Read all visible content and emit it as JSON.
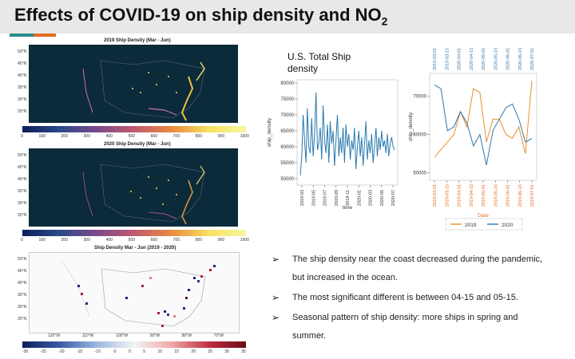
{
  "slide": {
    "title": "Effects of COVID-19 on ship density and NO",
    "title_sub": "2"
  },
  "maps": {
    "map1_title": "2019 Ship Density (Mar - Jun)",
    "map2_title": "2020 Ship Density (Mar - Jun)",
    "map3_title": "Ship Density Mar - Jun (2019 - 2020)",
    "lat_labels": [
      "50°N",
      "45°N",
      "40°N",
      "35°N",
      "30°N",
      "25°N"
    ],
    "colorbar_ticks": [
      "0",
      "100",
      "200",
      "300",
      "400",
      "500",
      "600",
      "700",
      "800",
      "900",
      "1000"
    ],
    "diff_lat_labels": [
      "50°N",
      "45°N",
      "40°N",
      "35°N",
      "30°N",
      "25°N"
    ],
    "diff_lon_labels": [
      "120°W",
      "110°W",
      "100°W",
      "90°W",
      "80°W",
      "70°W"
    ],
    "diff_colorbar_ticks": [
      "-30",
      "-25",
      "-20",
      "-15",
      "-10",
      "-5",
      "0",
      "5",
      "10",
      "15",
      "20",
      "25",
      "30",
      "35"
    ]
  },
  "chart_data": [
    {
      "type": "line",
      "title": "U.S. Total Ship density",
      "xlabel": "time",
      "ylabel": "ship_density",
      "x_ticks": [
        "2019-03",
        "2019-05",
        "2019-07",
        "2019-09",
        "2019-11",
        "2020-01",
        "2020-03",
        "2020-05",
        "2020-07"
      ],
      "y_ticks": [
        "50000",
        "55000",
        "60000",
        "65000",
        "70000",
        "75000",
        "80000"
      ],
      "ylim": [
        48000,
        81000
      ],
      "series": [
        {
          "color": "#2a7ab0",
          "values": [
            51000,
            57000,
            70000,
            62000,
            55000,
            72000,
            60000,
            58000,
            69000,
            57000,
            64000,
            77000,
            59000,
            61000,
            66000,
            56000,
            73000,
            62000,
            58000,
            67000,
            55000,
            68000,
            61000,
            65000,
            54000,
            62000,
            70000,
            57000,
            63000,
            58000,
            66000,
            55000,
            67000,
            60000,
            64000,
            56000,
            62000,
            59000,
            66000,
            53000,
            60000,
            65000,
            57000,
            63000,
            54000,
            61000,
            68000,
            56000,
            62000,
            58000,
            64000,
            55000,
            60000,
            66000,
            57000,
            63000,
            59000,
            65000,
            60000,
            62000,
            58000,
            64000,
            57000,
            61000,
            63000,
            60000,
            59000
          ]
        }
      ]
    },
    {
      "type": "line",
      "xlabel": "Date",
      "ylabel": "ship_density",
      "top_ticks": [
        "2019-03-01",
        "2019-03-15",
        "2020-04-01",
        "2020-04-15",
        "2020-05-01",
        "2020-05-15",
        "2020-06-01",
        "2020-06-15",
        "2020-07-01"
      ],
      "x_ticks": [
        "2019-03-01",
        "2019-03-15",
        "2019-04-01",
        "2019-04-15",
        "2019-05-01",
        "2019-05-15",
        "2019-06-01",
        "2019-06-15",
        "2019-07-01"
      ],
      "y_ticks": [
        "50000",
        "60000",
        "70000"
      ],
      "ylim": [
        48000,
        76000
      ],
      "legend": [
        "2019",
        "2020"
      ],
      "series": [
        {
          "name": "2019",
          "color": "#e8902a",
          "values": [
            54000,
            56000,
            58000,
            60000,
            66000,
            62000,
            72000,
            71000,
            58000,
            64000,
            64000,
            60000,
            59000,
            62000,
            55000,
            74000
          ]
        },
        {
          "name": "2020",
          "color": "#2a7ab0",
          "values": [
            73000,
            72000,
            61000,
            62000,
            66000,
            63000,
            57000,
            60000,
            52000,
            61000,
            64000,
            67000,
            68000,
            64000,
            58000,
            59000
          ]
        }
      ]
    }
  ],
  "bullets": [
    "The ship density near the coast decreased during the pandemic, but increased in the ocean.",
    "The most significant different is between 04-15 and 05-15.",
    "Seasonal pattern of ship density: more ships in spring and summer."
  ],
  "bullet_glyph": "➢"
}
